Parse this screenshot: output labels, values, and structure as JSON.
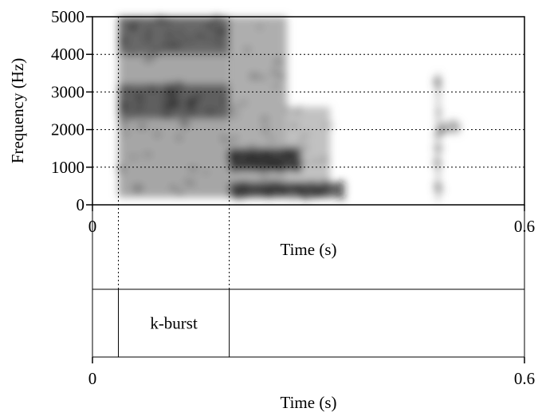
{
  "chart_data": [
    {
      "type": "heatmap",
      "subtype": "spectrogram",
      "title": "",
      "xlabel": "Time (s)",
      "ylabel": "Frequency (Hz)",
      "xlim": [
        0,
        0.6
      ],
      "ylim": [
        0,
        5000
      ],
      "x_tick_labels": [
        "0",
        "0.6"
      ],
      "y_tick_labels": [
        "0",
        "1000",
        "2000",
        "3000",
        "4000",
        "5000"
      ],
      "y_ticks": [
        0,
        1000,
        2000,
        3000,
        4000,
        5000
      ],
      "grid": "horizontal dotted at y ticks",
      "vertical_markers_s": [
        0.036,
        0.19
      ],
      "colormap": "grayscale (darker = more energy)",
      "energy_regions": [
        {
          "t_start": 0.036,
          "t_end": 0.19,
          "f_low": 200,
          "f_high": 5000,
          "intensity": 0.5
        },
        {
          "t_start": 0.036,
          "t_end": 0.19,
          "f_low": 2300,
          "f_high": 3200,
          "intensity": 0.75
        },
        {
          "t_start": 0.036,
          "t_end": 0.19,
          "f_low": 4000,
          "f_high": 5000,
          "intensity": 0.7
        },
        {
          "t_start": 0.19,
          "t_end": 0.27,
          "f_low": 200,
          "f_high": 5000,
          "intensity": 0.45
        },
        {
          "t_start": 0.27,
          "t_end": 0.33,
          "f_low": 200,
          "f_high": 2600,
          "intensity": 0.35
        },
        {
          "t_start": 0.19,
          "t_end": 0.29,
          "f_low": 900,
          "f_high": 1500,
          "intensity": 0.95
        },
        {
          "t_start": 0.19,
          "t_end": 0.35,
          "f_low": 200,
          "f_high": 600,
          "intensity": 0.9
        },
        {
          "t_start": 0.478,
          "t_end": 0.482,
          "f_low": 100,
          "f_high": 3500,
          "intensity": 0.45
        },
        {
          "t_start": 0.482,
          "t_end": 0.51,
          "f_low": 1900,
          "f_high": 2200,
          "intensity": 0.4
        }
      ]
    },
    {
      "type": "table",
      "subtype": "annotation-tier",
      "xlabel": "Time (s)",
      "xlim": [
        0,
        0.6
      ],
      "x_tick_labels": [
        "0",
        "0.6"
      ],
      "boundaries_s": [
        0.036,
        0.19
      ],
      "intervals": [
        {
          "start": 0,
          "end": 0.036,
          "label": ""
        },
        {
          "start": 0.036,
          "end": 0.19,
          "label": "k-burst"
        },
        {
          "start": 0.19,
          "end": 0.6,
          "label": ""
        }
      ]
    }
  ]
}
